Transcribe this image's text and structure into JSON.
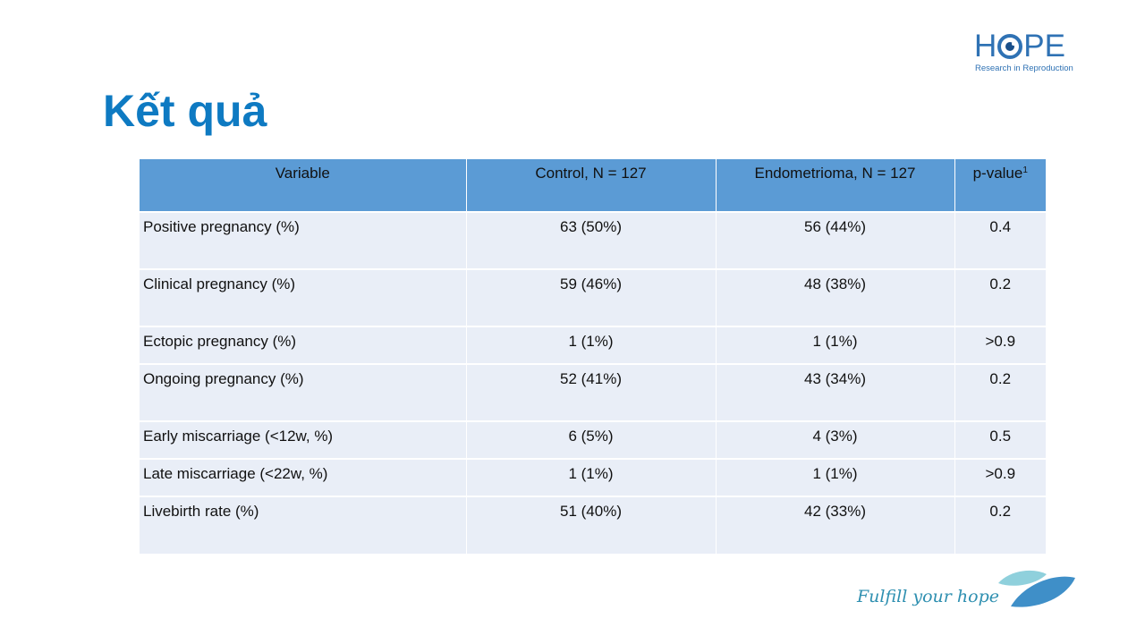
{
  "logo": {
    "word_left": "H",
    "word_right": "PE",
    "tagline": "Research in Reproduction"
  },
  "slide": {
    "title": "Kết quả"
  },
  "table": {
    "headers": [
      "Variable",
      "Control, N = 127",
      "Endometrioma, N = 127",
      "p-value"
    ],
    "pvalue_superscript": "1",
    "rows": [
      {
        "variable": "Positive pregnancy (%)",
        "control": "63 (50%)",
        "endometrioma": "56 (44%)",
        "pvalue": "0.4"
      },
      {
        "variable": "Clinical pregnancy (%)",
        "control": "59 (46%)",
        "endometrioma": "48 (38%)",
        "pvalue": "0.2"
      },
      {
        "variable": "Ectopic pregnancy (%)",
        "control": "1 (1%)",
        "endometrioma": "1 (1%)",
        "pvalue": ">0.9"
      },
      {
        "variable": "Ongoing pregnancy (%)",
        "control": "52 (41%)",
        "endometrioma": "43 (34%)",
        "pvalue": "0.2"
      },
      {
        "variable": "Early miscarriage (<12w, %)",
        "control": "6 (5%)",
        "endometrioma": "4 (3%)",
        "pvalue": "0.5"
      },
      {
        "variable": "Late miscarriage (<22w, %)",
        "control": "1 (1%)",
        "endometrioma": "1 (1%)",
        "pvalue": ">0.9"
      },
      {
        "variable": "Livebirth rate (%)",
        "control": "51 (40%)",
        "endometrioma": "42 (33%)",
        "pvalue": "0.2"
      }
    ]
  },
  "footer": {
    "slogan": "Fulfill your hope"
  },
  "colors": {
    "title": "#0e7ac2",
    "header_bg": "#5b9bd5",
    "row_bg": "#e9eef7",
    "brand": "#2f72b4"
  }
}
